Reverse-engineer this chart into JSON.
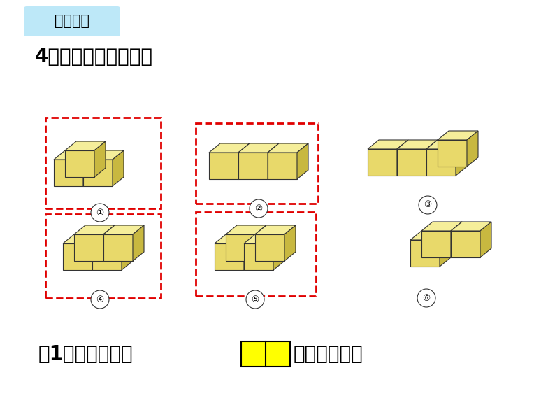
{
  "bg_color": "#ffffff",
  "title_box_color": "#c8eaf8",
  "title_text": "巩固练习",
  "subtitle": "4．看一看，说一说。",
  "question": "（1）从前面看是",
  "question2": "的有哪几个？",
  "cube_fill": "#e8d96a",
  "cube_dark": "#c8b840",
  "cube_light": "#f5ee9a",
  "cube_edge": "#333333",
  "dashed_color": "#e00000",
  "label_circle_color": "#ffffff",
  "label_circle_edge": "#333333",
  "labels": [
    "①",
    "②",
    "③",
    "④",
    "⑤",
    "⑥"
  ]
}
